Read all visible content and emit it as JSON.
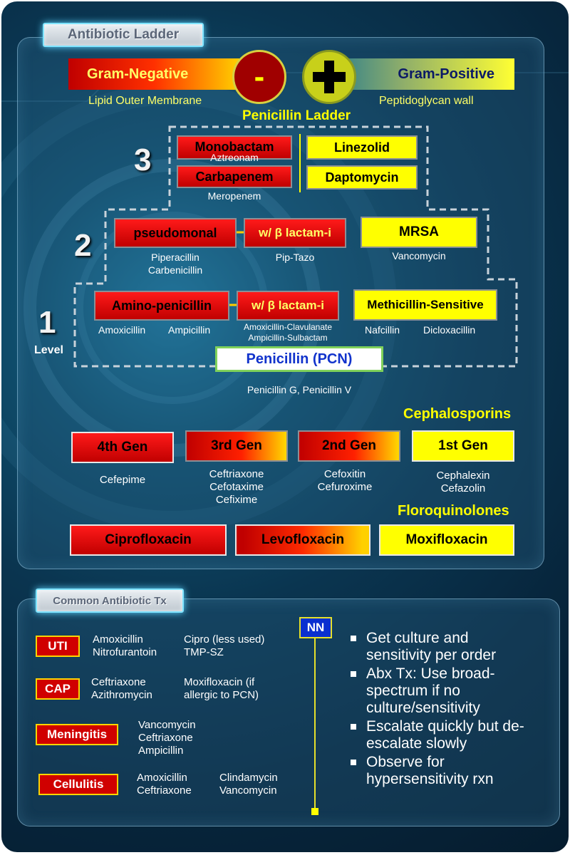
{
  "title": "Antibiotic Ladder",
  "gram_negative": {
    "label": "Gram-Negative",
    "desc": "Lipid Outer Membrane",
    "symbol": "-"
  },
  "gram_positive": {
    "label": "Gram-Positive",
    "desc": "Peptidoglycan wall",
    "symbol": "+"
  },
  "ladder_title": "Penicillin Ladder",
  "levels": {
    "l3": "3",
    "l2": "2",
    "l1": "1",
    "level_label": "Level"
  },
  "level3": {
    "monobactam": "Monobactam",
    "monobactam_drug": "Aztreonam",
    "carbapenem": "Carbapenem",
    "carbapenem_drug": "Meropenem",
    "linezolid": "Linezolid",
    "daptomycin": "Daptomycin"
  },
  "level2": {
    "pseudomonal": "pseudomonal",
    "pseudomonal_drugs": [
      "Piperacillin",
      "Carbenicillin"
    ],
    "lactam": "w/ β lactam-i",
    "lactam_drug": "Pip-Tazo",
    "mrsa": "MRSA",
    "mrsa_drug": "Vancomycin"
  },
  "level1": {
    "amino": "Amino-penicillin",
    "amino_drugs": [
      "Amoxicillin",
      "Ampicillin"
    ],
    "lactam": "w/ β lactam-i",
    "lactam_drugs": [
      "Amoxicillin-Clavulanate",
      "Ampicillin-Sulbactam"
    ],
    "msens": "Methicillin-Sensitive",
    "msens_drugs": [
      "Nafcillin",
      "Dicloxacillin"
    ]
  },
  "penicillin": {
    "label": "Penicillin (PCN)",
    "drugs": "Penicillin G, Penicillin V"
  },
  "cephalosporins": {
    "title": "Cephalosporins",
    "gens": [
      {
        "label": "4th Gen",
        "drugs": [
          "Cefepime"
        ]
      },
      {
        "label": "3rd Gen",
        "drugs": [
          "Ceftriaxone",
          "Cefotaxime",
          "Cefixime"
        ]
      },
      {
        "label": "2nd Gen",
        "drugs": [
          "Cefoxitin",
          "Cefuroxime"
        ]
      },
      {
        "label": "1st Gen",
        "drugs": [
          "Cephalexin",
          "Cefazolin"
        ]
      }
    ]
  },
  "floroquinolones": {
    "title": "Floroquinolones",
    "drugs": [
      "Ciprofloxacin",
      "Levofloxacin",
      "Moxifloxacin"
    ]
  },
  "common_tx": {
    "title": "Common Antibiotic Tx",
    "rows": [
      {
        "condition": "UTI",
        "col1": [
          "Amoxicillin",
          "Nitrofurantoin"
        ],
        "col2": [
          "Cipro (less used)",
          "TMP-SZ"
        ]
      },
      {
        "condition": "CAP",
        "col1": [
          "Ceftriaxone",
          "Azithromycin"
        ],
        "col2": [
          "Moxifloxacin (if",
          "allergic to PCN)"
        ]
      },
      {
        "condition": "Meningitis",
        "col1": [
          "Vancomycin",
          "Ceftriaxone",
          "Ampicillin"
        ],
        "col2": []
      },
      {
        "condition": "Cellulitis",
        "col1": [
          "Amoxicillin",
          "Ceftriaxone"
        ],
        "col2": [
          "Clindamycin",
          "Vancomycin"
        ]
      }
    ],
    "nn": "NN",
    "notes": [
      "Get culture and sensitivity per order",
      "Abx Tx: Use broad-spectrum if no culture/sensitivity",
      "Escalate quickly but de-escalate slowly",
      "Observe for hypersensitivity rxn"
    ]
  },
  "colors": {
    "red": "#c00000",
    "yellow": "#ffff00",
    "background": "#0a3550",
    "pcn_text": "#1133cc"
  }
}
